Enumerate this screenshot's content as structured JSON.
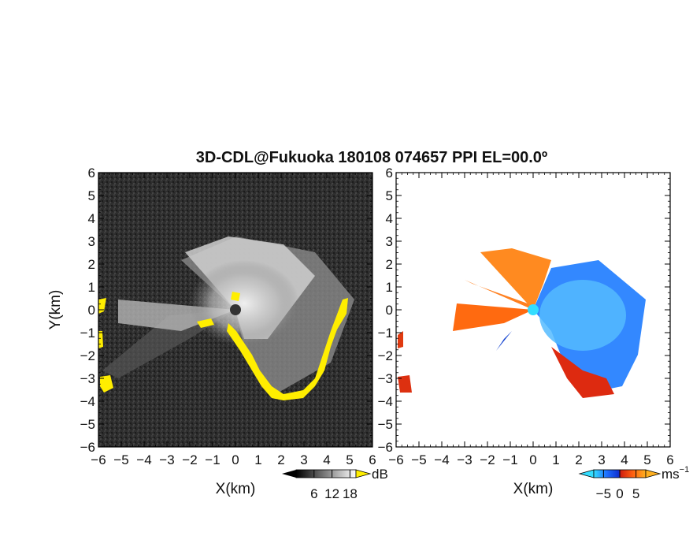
{
  "title": "3D-CDL@Fukuoka 180108 074657 PPI EL=00.0º",
  "chart_data": [
    {
      "type": "heatmap",
      "panel": "reflectivity",
      "xlabel": "X(km)",
      "ylabel": "Y(km)",
      "xlim": [
        -6,
        6
      ],
      "ylim": [
        -6,
        6
      ],
      "xticks": [
        "−6",
        "−5",
        "−4",
        "−3",
        "−2",
        "−1",
        "0",
        "1",
        "2",
        "3",
        "4",
        "5",
        "6"
      ],
      "yticks": [
        "6",
        "5",
        "4",
        "3",
        "2",
        "1",
        "0",
        "−1",
        "−2",
        "−3",
        "−4",
        "−5",
        "−6"
      ],
      "colorbar": {
        "unit": "dB",
        "ticks": [
          "6",
          "12",
          "18"
        ],
        "tick_values": [
          6,
          12,
          18
        ],
        "range": [
          0,
          20
        ],
        "extend": "both",
        "colors": [
          "#000000",
          "#ffffff"
        ]
      },
      "highlight_color": "#ffee00",
      "background_color": "#2a2a2a"
    },
    {
      "type": "heatmap",
      "panel": "doppler_velocity",
      "xlabel": "X(km)",
      "ylabel": "",
      "xlim": [
        -6,
        6
      ],
      "ylim": [
        -6,
        6
      ],
      "xticks": [
        "−6",
        "−5",
        "−4",
        "−3",
        "−2",
        "−1",
        "0",
        "1",
        "2",
        "3",
        "4",
        "5",
        "6"
      ],
      "yticks": [
        "6",
        "5",
        "4",
        "3",
        "2",
        "1",
        "0",
        "−1",
        "−2",
        "−3",
        "−4",
        "−5",
        "−6"
      ],
      "colorbar": {
        "unit": "ms",
        "unit_sup": "−1",
        "ticks": [
          "−5",
          "0",
          "5"
        ],
        "tick_values": [
          -5,
          0,
          5
        ],
        "range": [
          -8,
          8
        ],
        "extend": "both",
        "colors": [
          "#33ddff",
          "#1e6fff",
          "#1030d0",
          "#d02010",
          "#ff6010",
          "#ffb020"
        ]
      },
      "background_color": "#ffffff"
    }
  ]
}
